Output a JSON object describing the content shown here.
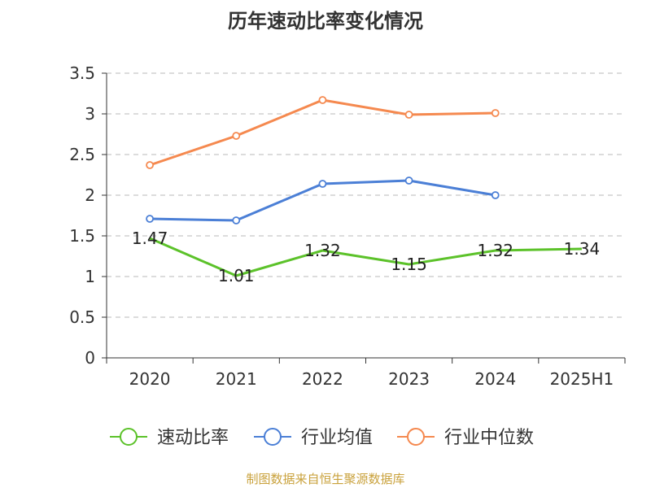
{
  "chart_data": {
    "type": "line",
    "title": "历年速动比率变化情况",
    "categories": [
      "2020",
      "2021",
      "2022",
      "2023",
      "2024",
      "2025H1"
    ],
    "ylim": [
      0,
      3.5
    ],
    "yticks": [
      "0",
      "0.5",
      "1",
      "1.5",
      "2",
      "2.5",
      "3",
      "3.5"
    ],
    "grid": true,
    "legend_position": "bottom",
    "series": [
      {
        "name": "速动比率",
        "color": "#5cc22a",
        "values": [
          1.47,
          1.01,
          1.32,
          1.15,
          1.32,
          1.34
        ],
        "labels": [
          "1.47",
          "1.01",
          "1.32",
          "1.15",
          "1.32",
          "1.34"
        ]
      },
      {
        "name": "行业均值",
        "color": "#4b7fd6",
        "values": [
          1.71,
          1.69,
          2.14,
          2.18,
          2.0,
          null
        ]
      },
      {
        "name": "行业中位数",
        "color": "#f5894f",
        "values": [
          2.37,
          2.73,
          3.17,
          2.99,
          3.01,
          null
        ]
      }
    ]
  },
  "source_note": "制图数据来自恒生聚源数据库"
}
